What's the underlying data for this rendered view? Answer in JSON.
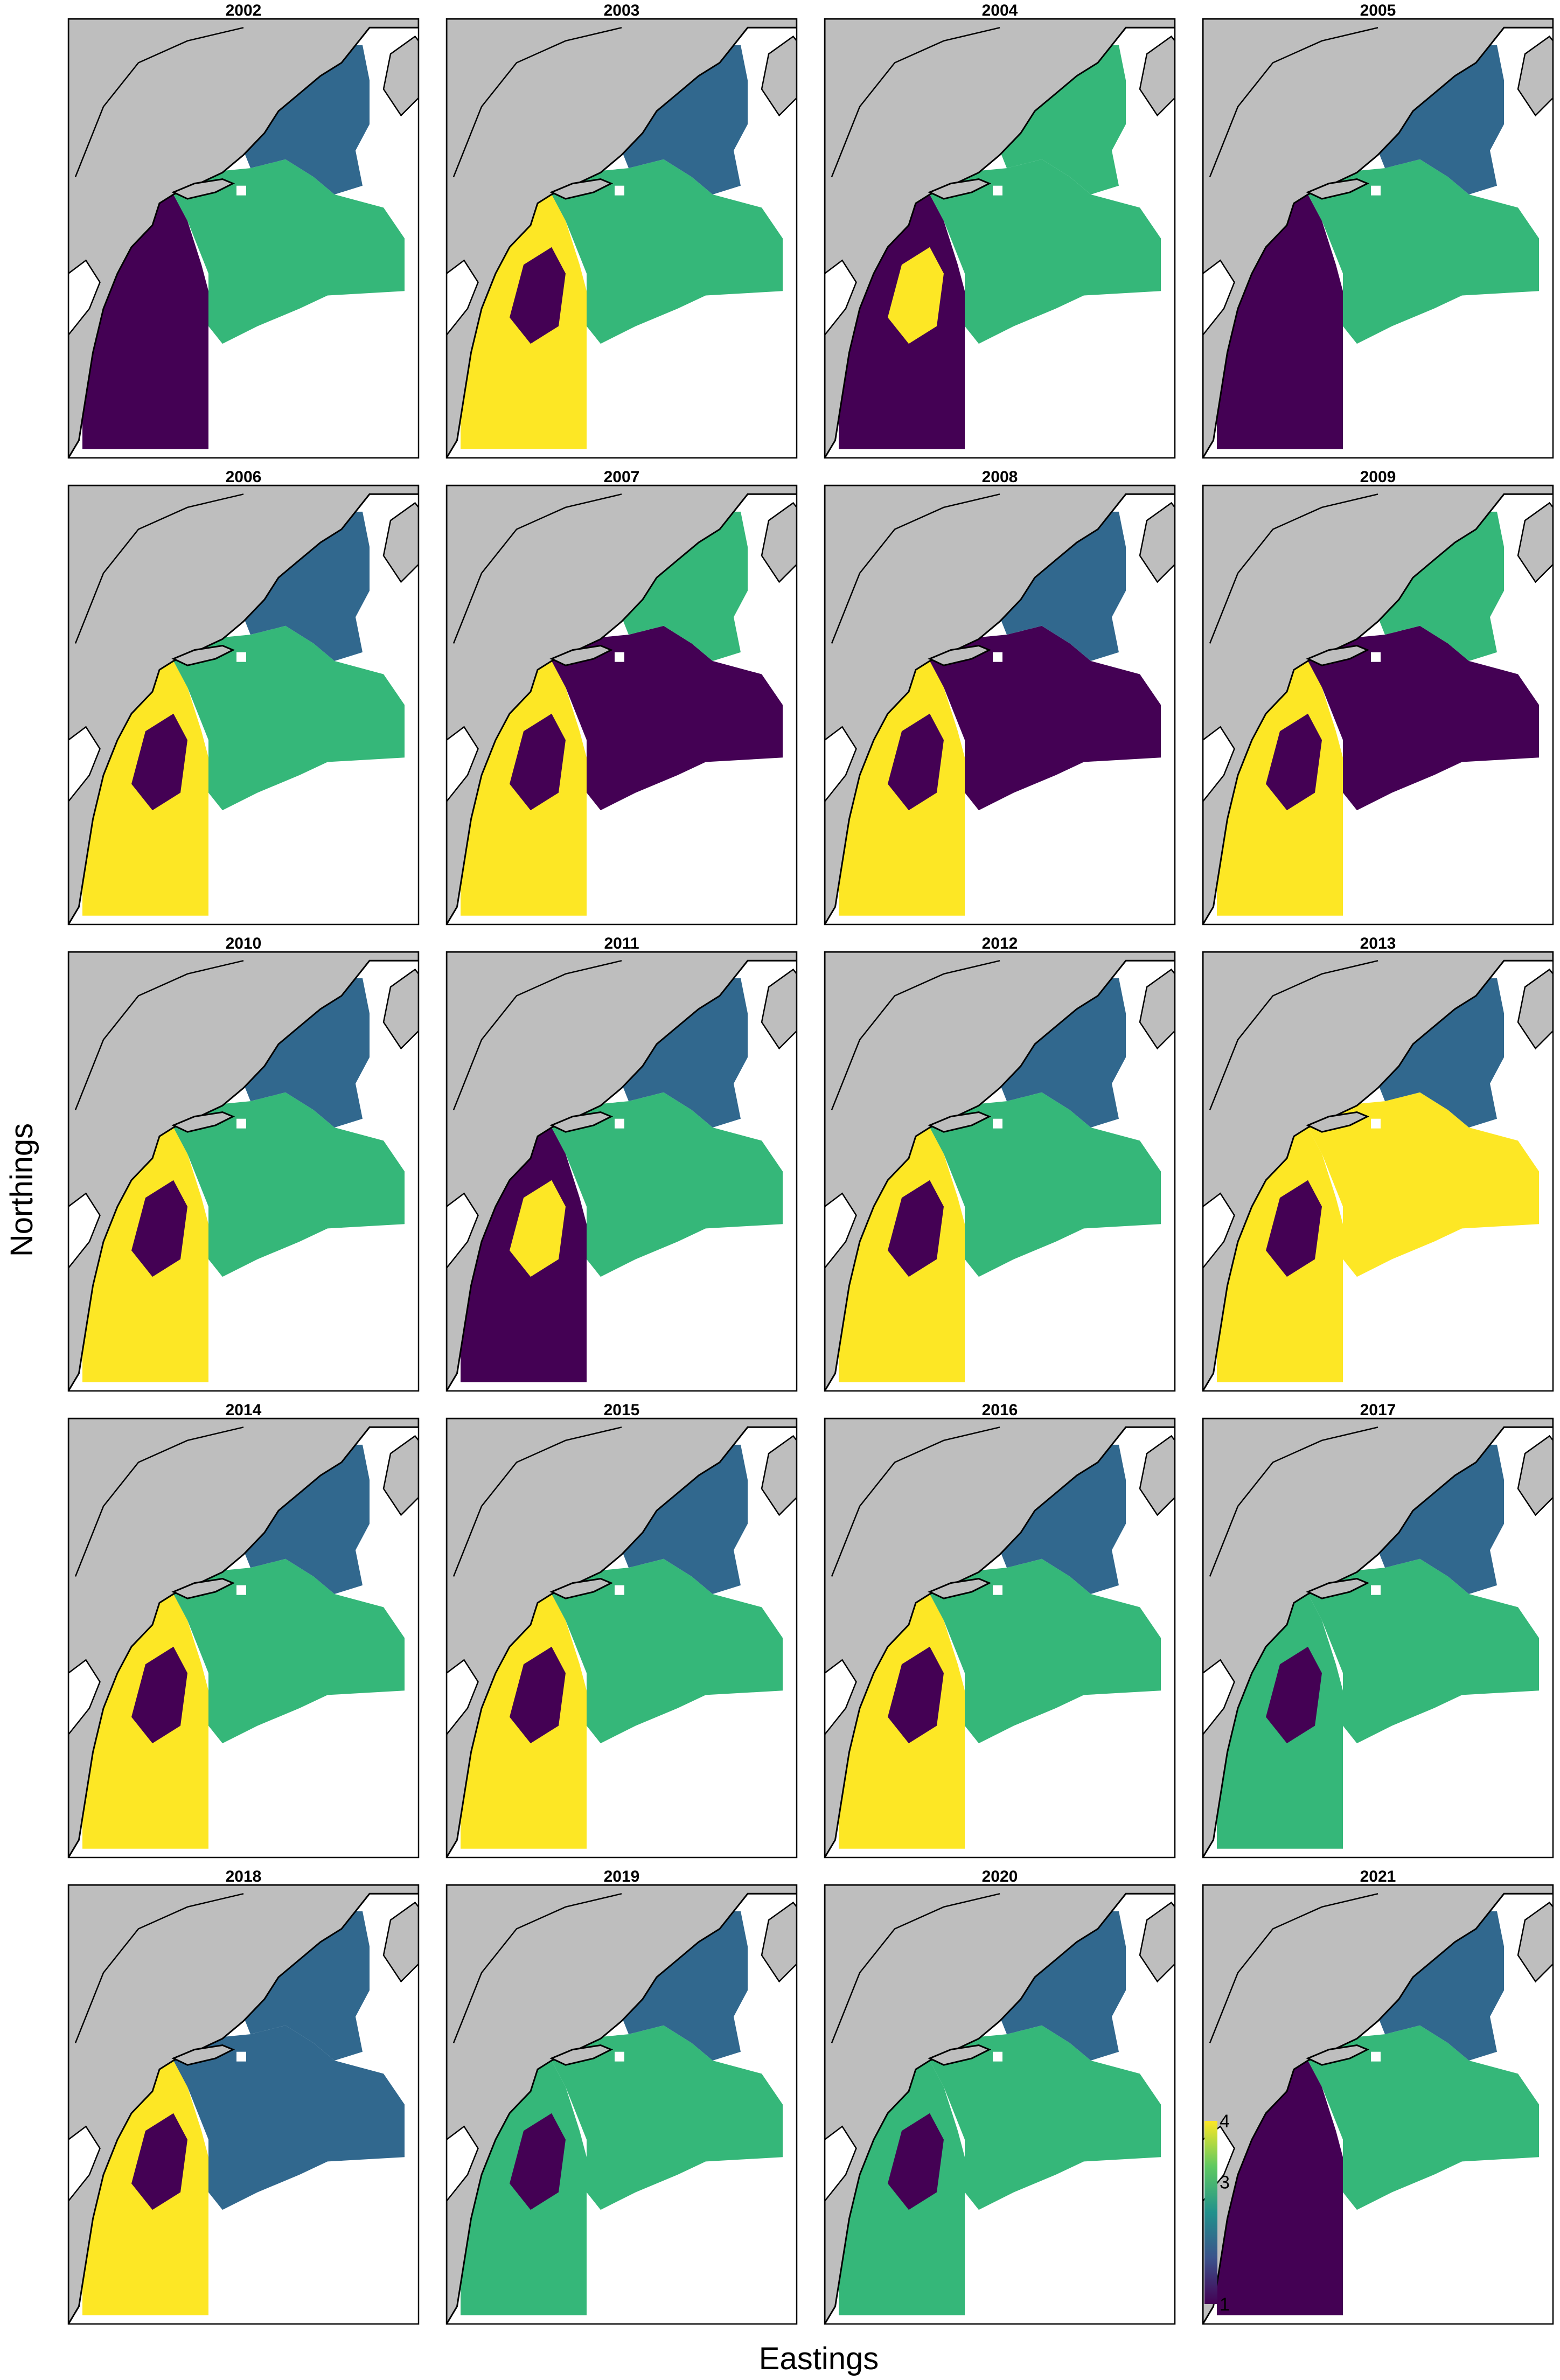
{
  "figure": {
    "xlabel": "Eastings",
    "ylabel": "Northings"
  },
  "colors": {
    "land": "#bebebe",
    "coast": "#000000",
    "class_1": "#440154",
    "class_2": "#31688e",
    "class_3": "#35b779",
    "class_4": "#fde725"
  },
  "legend": {
    "type": "colorbar",
    "placement": "bottom-left of 2021 panel",
    "tick_labels": [
      "1",
      "3",
      "4"
    ],
    "range": [
      1,
      4
    ]
  },
  "panels": [
    {
      "year": "2002",
      "north": 2,
      "central": 3,
      "south": 1,
      "patch": null
    },
    {
      "year": "2003",
      "north": 2,
      "central": 3,
      "south": 4,
      "patch": 1
    },
    {
      "year": "2004",
      "north": 3,
      "central": 3,
      "south": 1,
      "patch": 4
    },
    {
      "year": "2005",
      "north": 2,
      "central": 3,
      "south": 1,
      "patch": null
    },
    {
      "year": "2006",
      "north": 2,
      "central": 3,
      "south": 4,
      "patch": 1
    },
    {
      "year": "2007",
      "north": 3,
      "central": 1,
      "south": 4,
      "patch": 1
    },
    {
      "year": "2008",
      "north": 2,
      "central": 1,
      "south": 4,
      "patch": 1
    },
    {
      "year": "2009",
      "north": 3,
      "central": 1,
      "south": 4,
      "patch": 1
    },
    {
      "year": "2010",
      "north": 2,
      "central": 3,
      "south": 4,
      "patch": 1
    },
    {
      "year": "2011",
      "north": 2,
      "central": 3,
      "south": 1,
      "patch": 4
    },
    {
      "year": "2012",
      "north": 2,
      "central": 3,
      "south": 4,
      "patch": 1
    },
    {
      "year": "2013",
      "north": 2,
      "central": 4,
      "south": 4,
      "patch": 1
    },
    {
      "year": "2014",
      "north": 2,
      "central": 3,
      "south": 4,
      "patch": 1
    },
    {
      "year": "2015",
      "north": 2,
      "central": 3,
      "south": 4,
      "patch": 1
    },
    {
      "year": "2016",
      "north": 2,
      "central": 3,
      "south": 4,
      "patch": 1
    },
    {
      "year": "2017",
      "north": 2,
      "central": 3,
      "south": 3,
      "patch": 1
    },
    {
      "year": "2018",
      "north": 2,
      "central": 2,
      "south": 4,
      "patch": 1
    },
    {
      "year": "2019",
      "north": 2,
      "central": 3,
      "south": 3,
      "patch": 1
    },
    {
      "year": "2020",
      "north": 2,
      "central": 3,
      "south": 3,
      "patch": 1
    },
    {
      "year": "2021",
      "north": 2,
      "central": 3,
      "south": 1,
      "patch": null
    }
  ]
}
